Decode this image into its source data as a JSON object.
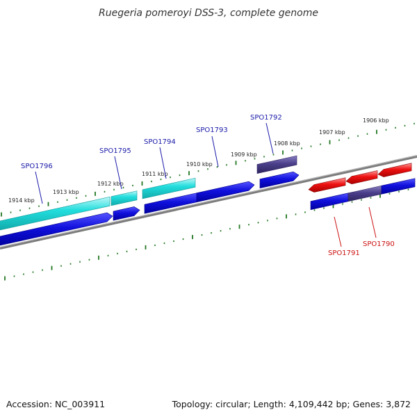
{
  "title": "Ruegeria pomeroyi DSS-3, complete genome",
  "footer": {
    "accession": "Accession: NC_003911",
    "stats": "Topology: circular; Length: 4,109,442 bp; Genes: 3,872"
  },
  "kbp_ticks": [
    "1914 kbp",
    "1913 kbp",
    "1912 kbp",
    "1911 kbp",
    "1910 kbp",
    "1909 kbp",
    "1908 kbp",
    "1907 kbp",
    "1906 kbp"
  ],
  "gene_labels": [
    {
      "name": "SPO1796",
      "strand": "forward"
    },
    {
      "name": "SPO1795",
      "strand": "forward"
    },
    {
      "name": "SPO1794",
      "strand": "forward"
    },
    {
      "name": "SPO1793",
      "strand": "forward"
    },
    {
      "name": "SPO1792",
      "strand": "forward"
    },
    {
      "name": "SPO1791",
      "strand": "reverse"
    },
    {
      "name": "SPO1790",
      "strand": "reverse"
    }
  ],
  "colors": {
    "forward_label": "#1a1aaa",
    "reverse_label": "#cc1111",
    "cds_forward": "#1010dd",
    "gene_cyan": "#22dddd",
    "gene_dark": "#4a3f8a",
    "gene_red": "#ee1111",
    "backbone": "#888888",
    "ticks": "#227722"
  }
}
